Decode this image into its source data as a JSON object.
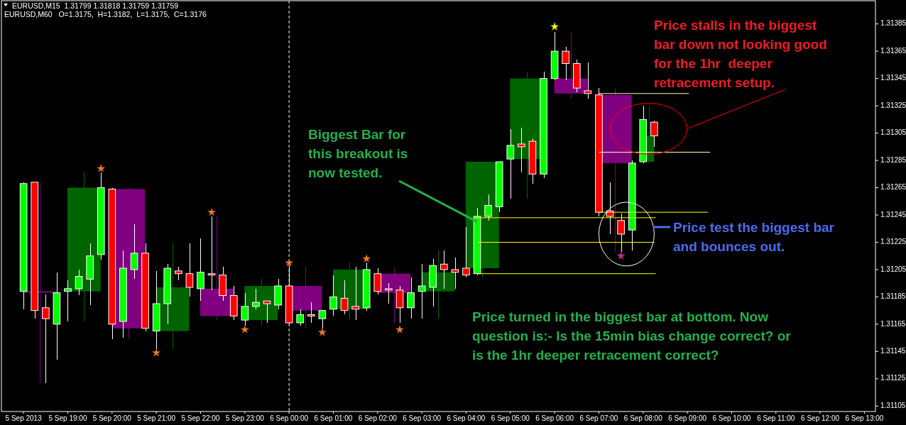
{
  "chart_data": {
    "type": "candlestick",
    "xlim": [
      "2013-09-05T17:30",
      "2013-09-06T13:15"
    ],
    "xticks": [
      {
        "value": "2013-09-05T18:00",
        "label": "5 Sep 2013"
      },
      {
        "value": "2013-09-05T19:00",
        "label": "5 Sep 19:00"
      },
      {
        "value": "2013-09-05T20:00",
        "label": "5 Sep 20:00"
      },
      {
        "value": "2013-09-05T21:00",
        "label": "5 Sep 21:00"
      },
      {
        "value": "2013-09-05T22:00",
        "label": "5 Sep 22:00"
      },
      {
        "value": "2013-09-05T23:00",
        "label": "5 Sep 23:00"
      },
      {
        "value": "2013-09-06T00:00",
        "label": "6 Sep 00:00"
      },
      {
        "value": "2013-09-06T01:00",
        "label": "6 Sep 01:00"
      },
      {
        "value": "2013-09-06T02:00",
        "label": "6 Sep 02:00"
      },
      {
        "value": "2013-09-06T03:00",
        "label": "6 Sep 03:00"
      },
      {
        "value": "2013-09-06T04:00",
        "label": "6 Sep 04:00"
      },
      {
        "value": "2013-09-06T05:00",
        "label": "6 Sep 05:00"
      },
      {
        "value": "2013-09-06T06:00",
        "label": "6 Sep 06:00"
      },
      {
        "value": "2013-09-06T07:00",
        "label": "6 Sep 07:00"
      },
      {
        "value": "2013-09-06T08:00",
        "label": "6 Sep 08:00"
      },
      {
        "value": "2013-09-06T09:00",
        "label": "6 Sep 09:00"
      },
      {
        "value": "2013-09-06T10:00",
        "label": "6 Sep 10:00"
      },
      {
        "value": "2013-09-06T11:00",
        "label": "6 Sep 11:00"
      },
      {
        "value": "2013-09-06T12:00",
        "label": "6 Sep 12:00"
      },
      {
        "value": "2013-09-06T13:00",
        "label": "6 Sep 13:00"
      }
    ],
    "ylim": [
      1.31101,
      1.31402
    ],
    "yticks": [
      1.31385,
      1.31365,
      1.31345,
      1.31325,
      1.31305,
      1.31285,
      1.31265,
      1.31245,
      1.31225,
      1.31205,
      1.31185,
      1.31165,
      1.31145,
      1.31125,
      1.31105
    ],
    "ref_lines": [
      {
        "axis": "x",
        "value": "2013-09-06T00:00",
        "color": "#ffffff",
        "line_style": "dashed"
      }
    ],
    "annotations": [
      "EURUSD,M15  1.31799 1.31818 1.31759 1.31759",
      "EURUSD,M60   O=1.3175,  H=1.3182,  L=1.3175,  C=1.3176",
      "Price stalls in the biggest\nbar down not looking good\nfor the 1hr  deeper\nretracement setup.",
      {
        "text": "Biggest Bar for\nthis breakout is\nnow tested.",
        "x": "2013-09-06T04:15",
        "y": 1.3124
      },
      "Price test the biggest bar\nand bounces out.",
      "Price turned in the biggest bar at bottom. Now\nquestion is:- Is the 15min bias change correct? or\nis the 1hr deeper retracement correct?"
    ],
    "series": [
      {
        "x": [
          "2013-09-05T18:22",
          "2013-09-05T19:22",
          "2013-09-05T20:22",
          "2013-09-05T21:22",
          "2013-09-05T22:22",
          "2013-09-05T23:22",
          "2013-09-06T00:22",
          "2013-09-06T01:22",
          "2013-09-06T02:22",
          "2013-09-06T03:22",
          "2013-09-06T04:22",
          "2013-09-06T05:22",
          "2013-09-06T06:22",
          "2013-09-06T07:22",
          "2013-09-06T08:08"
        ],
        "ohlc": [
          [
            1.31189,
            1.31269,
            1.31122,
            1.31188
          ],
          [
            1.31189,
            1.31276,
            1.31167,
            1.31265
          ],
          [
            1.31264,
            1.31265,
            1.31154,
            1.31162
          ],
          [
            1.3116,
            1.31224,
            1.31147,
            1.31192
          ],
          [
            1.31191,
            1.31244,
            1.31168,
            1.31171
          ],
          [
            1.31168,
            1.31198,
            1.31164,
            1.31193
          ],
          [
            1.31193,
            1.31207,
            1.31162,
            1.31175
          ],
          [
            1.31176,
            1.3121,
            1.31168,
            1.31205
          ],
          [
            1.31202,
            1.31206,
            1.31166,
            1.31188
          ],
          [
            1.31189,
            1.31219,
            1.31169,
            1.31203
          ],
          [
            1.31206,
            1.31284,
            1.31199,
            1.31284
          ],
          [
            1.31286,
            1.3135,
            1.31257,
            1.31345
          ],
          [
            1.31345,
            1.31379,
            1.3133,
            1.31334
          ],
          [
            1.31333,
            1.31338,
            1.31218,
            1.31283
          ],
          [
            1.31284,
            1.31325,
            1.31283,
            1.31303
          ]
        ],
        "colors": [
          "#800080",
          "#006400",
          "#800080",
          "#006400",
          "#800080",
          "#006400",
          "#800080",
          "#006400",
          "#800080",
          "#006400",
          "#006400",
          "#006400",
          "#800080",
          "#800080",
          "#006400"
        ]
      },
      {
        "type": "line",
        "color": "#ffff00",
        "x": [
          "2013-09-06T04:11",
          "2013-09-06T08:17"
        ],
        "values": [
          1.31243,
          1.31243
        ]
      },
      {
        "type": "line",
        "color": "#ffff00",
        "x": [
          "2013-09-06T04:16",
          "2013-09-06T08:15"
        ],
        "values": [
          1.31225,
          1.31225
        ]
      },
      {
        "type": "line",
        "color": "#ffff00",
        "x": [
          "2013-09-06T04:16",
          "2013-09-06T08:17"
        ],
        "values": [
          1.31202,
          1.31202
        ]
      },
      {
        "type": "line",
        "color": "#ffff00",
        "x": [
          "2013-09-06T07:00",
          "2013-09-06T09:28"
        ],
        "values": [
          1.31247,
          1.31247
        ]
      },
      {
        "type": "line",
        "color": "#ffffc0",
        "x": [
          "2013-09-06T07:00",
          "2013-09-06T09:02"
        ],
        "values": [
          1.31334,
          1.31334
        ]
      },
      {
        "type": "line",
        "color": "#ffffc0",
        "x": [
          "2013-09-06T07:00",
          "2013-09-06T09:31"
        ],
        "values": [
          1.31291,
          1.31291
        ]
      },
      {
        "x": [
          "2013-09-05T18:00",
          "2013-09-05T18:15",
          "2013-09-05T18:30",
          "2013-09-05T18:45",
          "2013-09-05T19:00",
          "2013-09-05T19:15",
          "2013-09-05T19:30",
          "2013-09-05T19:45",
          "2013-09-05T20:00",
          "2013-09-05T20:15",
          "2013-09-05T20:30",
          "2013-09-05T20:45",
          "2013-09-05T21:00",
          "2013-09-05T21:15",
          "2013-09-05T21:30",
          "2013-09-05T21:45",
          "2013-09-05T22:00",
          "2013-09-05T22:15",
          "2013-09-05T22:30",
          "2013-09-05T22:45",
          "2013-09-05T23:00",
          "2013-09-05T23:15",
          "2013-09-05T23:30",
          "2013-09-05T23:45",
          "2013-09-06T00:00",
          "2013-09-06T00:15",
          "2013-09-06T00:30",
          "2013-09-06T00:45",
          "2013-09-06T01:00",
          "2013-09-06T01:15",
          "2013-09-06T01:30",
          "2013-09-06T01:45",
          "2013-09-06T02:00",
          "2013-09-06T02:15",
          "2013-09-06T02:30",
          "2013-09-06T02:45",
          "2013-09-06T03:00",
          "2013-09-06T03:15",
          "2013-09-06T03:30",
          "2013-09-06T03:45",
          "2013-09-06T04:00",
          "2013-09-06T04:15",
          "2013-09-06T04:30",
          "2013-09-06T04:45",
          "2013-09-06T05:00",
          "2013-09-06T05:15",
          "2013-09-06T05:30",
          "2013-09-06T05:45",
          "2013-09-06T06:00",
          "2013-09-06T06:15",
          "2013-09-06T06:30",
          "2013-09-06T06:45",
          "2013-09-06T07:00",
          "2013-09-06T07:15",
          "2013-09-06T07:30",
          "2013-09-06T07:45",
          "2013-09-06T08:00",
          "2013-09-06T08:15"
        ],
        "ohlc": [
          [
            1.31189,
            1.31269,
            1.31176,
            1.31268
          ],
          [
            1.31269,
            1.31269,
            1.31169,
            1.31175
          ],
          [
            1.31177,
            1.31187,
            1.31122,
            1.31169
          ],
          [
            1.31165,
            1.31203,
            1.31139,
            1.31188
          ],
          [
            1.31189,
            1.31197,
            1.31167,
            1.31191
          ],
          [
            1.31191,
            1.31205,
            1.31186,
            1.312
          ],
          [
            1.31198,
            1.31224,
            1.31179,
            1.31215
          ],
          [
            1.31216,
            1.31276,
            1.31212,
            1.31265
          ],
          [
            1.31264,
            1.31265,
            1.31154,
            1.31165
          ],
          [
            1.31167,
            1.31219,
            1.31155,
            1.31206
          ],
          [
            1.31205,
            1.31238,
            1.31198,
            1.31217
          ],
          [
            1.31217,
            1.31224,
            1.3116,
            1.31162
          ],
          [
            1.3116,
            1.31204,
            1.31147,
            1.3118
          ],
          [
            1.3118,
            1.31209,
            1.31165,
            1.31206
          ],
          [
            1.31204,
            1.31207,
            1.31197,
            1.31202
          ],
          [
            1.31202,
            1.31224,
            1.31185,
            1.31192
          ],
          [
            1.31191,
            1.31228,
            1.31182,
            1.31203
          ],
          [
            1.31202,
            1.31244,
            1.3119,
            1.31201
          ],
          [
            1.31201,
            1.31207,
            1.31182,
            1.31186
          ],
          [
            1.31186,
            1.31193,
            1.31168,
            1.31171
          ],
          [
            1.31168,
            1.31188,
            1.31164,
            1.31178
          ],
          [
            1.31178,
            1.31191,
            1.31176,
            1.31181
          ],
          [
            1.31182,
            1.31182,
            1.31166,
            1.3118
          ],
          [
            1.31179,
            1.31198,
            1.31176,
            1.31193
          ],
          [
            1.31193,
            1.31207,
            1.31165,
            1.31166
          ],
          [
            1.31166,
            1.31176,
            1.31164,
            1.31172
          ],
          [
            1.31172,
            1.31181,
            1.31166,
            1.31171
          ],
          [
            1.31169,
            1.31175,
            1.31162,
            1.31175
          ],
          [
            1.31176,
            1.31201,
            1.31171,
            1.31185
          ],
          [
            1.31184,
            1.31197,
            1.31172,
            1.31175
          ],
          [
            1.31178,
            1.31207,
            1.31168,
            1.31176
          ],
          [
            1.31177,
            1.3121,
            1.31175,
            1.31205
          ],
          [
            1.31202,
            1.31206,
            1.31187,
            1.31189
          ],
          [
            1.31191,
            1.31195,
            1.3118,
            1.3119
          ],
          [
            1.3119,
            1.31193,
            1.31166,
            1.31177
          ],
          [
            1.31177,
            1.31199,
            1.31169,
            1.31188
          ],
          [
            1.31189,
            1.31209,
            1.31169,
            1.31193
          ],
          [
            1.31192,
            1.31213,
            1.31178,
            1.31208
          ],
          [
            1.31209,
            1.31219,
            1.31191,
            1.31205
          ],
          [
            1.31205,
            1.31214,
            1.31191,
            1.31203
          ],
          [
            1.31206,
            1.31236,
            1.31199,
            1.31201
          ],
          [
            1.31202,
            1.3125,
            1.31201,
            1.31244
          ],
          [
            1.31244,
            1.3126,
            1.31241,
            1.31252
          ],
          [
            1.31251,
            1.31284,
            1.31247,
            1.31284
          ],
          [
            1.31286,
            1.31308,
            1.31257,
            1.31296
          ],
          [
            1.31297,
            1.31309,
            1.31276,
            1.31295
          ],
          [
            1.31299,
            1.31301,
            1.31268,
            1.31275
          ],
          [
            1.31275,
            1.3135,
            1.31272,
            1.31345
          ],
          [
            1.31345,
            1.31379,
            1.31344,
            1.31365
          ],
          [
            1.31365,
            1.31368,
            1.31344,
            1.31356
          ],
          [
            1.31356,
            1.31359,
            1.31335,
            1.31338
          ],
          [
            1.31336,
            1.31357,
            1.3133,
            1.31334
          ],
          [
            1.31333,
            1.31338,
            1.31244,
            1.31247
          ],
          [
            1.31248,
            1.31269,
            1.31231,
            1.31244
          ],
          [
            1.31241,
            1.31246,
            1.31218,
            1.31231
          ],
          [
            1.31234,
            1.31285,
            1.31219,
            1.31283
          ],
          [
            1.31284,
            1.31325,
            1.31283,
            1.31315
          ],
          [
            1.31313,
            1.31314,
            1.31295,
            1.31303
          ]
        ],
        "colors": [
          "#00ff00",
          "#ff0000",
          "#ff0000",
          "#00ff00",
          "#00ff00",
          "#00ff00",
          "#00ff00",
          "#00ff00",
          "#ff0000",
          "#00ff00",
          "#00ff00",
          "#ff0000",
          "#00ff00",
          "#00ff00",
          "#ff0000",
          "#ff0000",
          "#00ff00",
          "#ff0000",
          "#ff0000",
          "#ff0000",
          "#00ff00",
          "#00ff00",
          "#ff0000",
          "#00ff00",
          "#ff0000",
          "#00ff00",
          "#ff0000",
          "#00ff00",
          "#00ff00",
          "#ff0000",
          "#ff0000",
          "#00ff00",
          "#ff0000",
          "#ff0000",
          "#ff0000",
          "#00ff00",
          "#00ff00",
          "#00ff00",
          "#ff0000",
          "#ff0000",
          "#ff0000",
          "#00ff00",
          "#00ff00",
          "#00ff00",
          "#00ff00",
          "#ff0000",
          "#ff0000",
          "#00ff00",
          "#00ff00",
          "#ff0000",
          "#ff0000",
          "#ff0000",
          "#ff0000",
          "#ff0000",
          "#ff0000",
          "#00ff00",
          "#00ff00",
          "#ff0000"
        ]
      },
      {
        "type": "scatter",
        "marker": "star",
        "color": "#f07820",
        "x": [
          "2013-09-05T19:45",
          "2013-09-05T21:00",
          "2013-09-05T22:15",
          "2013-09-05T23:00",
          "2013-09-06T00:00",
          "2013-09-06T00:45",
          "2013-09-06T01:45",
          "2013-09-06T02:30"
        ],
        "values": [
          1.31279,
          1.31144,
          1.31247,
          1.31161,
          1.3121,
          1.31159,
          1.31213,
          1.31161
        ]
      },
      {
        "type": "scatter",
        "marker": "star",
        "color": "#ffff00",
        "x": [
          "2013-09-06T06:00"
        ],
        "values": [
          1.31383
        ]
      },
      {
        "type": "scatter",
        "marker": "star",
        "color": "#c8288c",
        "x": [
          "2013-09-06T07:30"
        ],
        "values": [
          1.31215
        ]
      }
    ]
  }
}
